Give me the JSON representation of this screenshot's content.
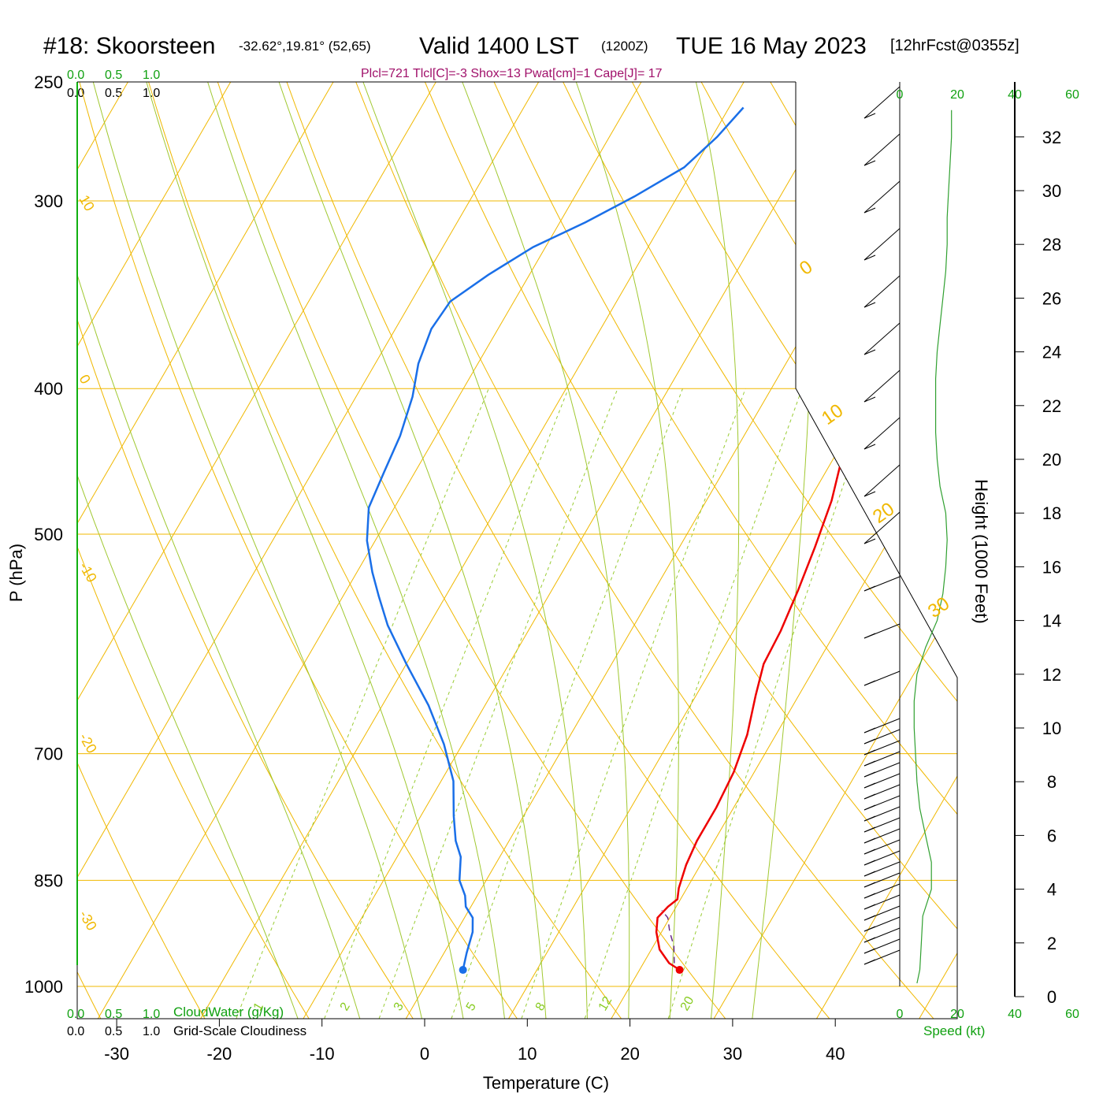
{
  "header": {
    "station": "#18: Skoorsteen",
    "coords": "-32.62°,19.81° (52,65)",
    "valid": "Valid 1400 LST",
    "utc": "(1200Z)",
    "date": "TUE 16 May 2023",
    "forecast": "[12hrFcst@0355z]",
    "params": "Plcl=721 Tlcl[C]=-3 Shox=13 Pwat[cm]=1 Cape[J]= 17"
  },
  "labels": {
    "xlabel": "Temperature (C)",
    "ylabel": "P (hPa)",
    "height_label": "Height (1000 Feet)",
    "cloudwater": "CloudWater (g/Kg)",
    "cloudiness": "Grid-Scale Cloudiness",
    "speed": "Speed (kt)",
    "scale_top_green": [
      "0.0",
      "0.5",
      "1.0"
    ],
    "scale_top_black": [
      "0.0",
      "0.5",
      "1.0"
    ],
    "scale_bottom_green": [
      "0.0",
      "0.5",
      "1.0"
    ],
    "scale_bottom_black": [
      "0.0",
      "0.5",
      "1.0"
    ]
  },
  "colors": {
    "temperature": "#ee0000",
    "dewpoint": "#1a6fe8",
    "isotherm": "#f0b800",
    "dry_adiabat": "#f0b800",
    "moist_adiabat": "#a0c830",
    "mixing_ratio": "#99cc33",
    "parcel": "#6a2a8a",
    "wind_profile": "#30a030",
    "params": "#a0106a"
  },
  "chart_data": {
    "type": "line",
    "title": "#18: Skoorsteen",
    "xlabel": "Temperature (C)",
    "ylabel": "P (hPa)",
    "xlim": [
      -34,
      36
    ],
    "ylim": [
      1000,
      250
    ],
    "y_scale": "log",
    "x_ticks": [
      -30,
      -20,
      -10,
      0,
      10,
      20,
      30,
      40
    ],
    "y_ticks": [
      250,
      300,
      400,
      500,
      700,
      850,
      1000
    ],
    "height_ticks": [
      0,
      2,
      4,
      6,
      8,
      10,
      12,
      14,
      16,
      18,
      20,
      22,
      24,
      26,
      28,
      30,
      32
    ],
    "speed_ticks": [
      0,
      20,
      40,
      60
    ],
    "isotherm_labels": [
      "10",
      "0",
      "-10",
      "-20",
      "-30"
    ],
    "right_isotherm_labels": [
      "0",
      "10",
      "20",
      "30"
    ],
    "mixing_ratio_labels": [
      "1",
      "2",
      "3",
      "5",
      "8",
      "12",
      "20"
    ],
    "series": [
      {
        "name": "temperature",
        "points": [
          [
            23.9,
            975
          ],
          [
            22.5,
            965
          ],
          [
            20.8,
            945
          ],
          [
            19.5,
            920
          ],
          [
            18.8,
            900
          ],
          [
            19.2,
            885
          ],
          [
            19.7,
            875
          ],
          [
            19.2,
            860
          ],
          [
            18.6,
            830
          ],
          [
            18.3,
            800
          ],
          [
            18.3,
            760
          ],
          [
            18.0,
            720
          ],
          [
            17.2,
            680
          ],
          [
            15.8,
            640
          ],
          [
            14.8,
            610
          ],
          [
            14.6,
            580
          ],
          [
            14.0,
            545
          ],
          [
            13.2,
            510
          ],
          [
            12.2,
            475
          ],
          [
            10.8,
            445
          ],
          [
            9.2,
            410
          ],
          [
            7.5,
            380
          ],
          [
            5.8,
            355
          ],
          [
            4.2,
            335
          ],
          [
            2.6,
            315
          ],
          [
            1.2,
            298
          ],
          [
            -0.4,
            282
          ],
          [
            -1.8,
            268
          ],
          [
            -2.6,
            260
          ]
        ]
      },
      {
        "name": "dewpoint",
        "points": [
          [
            2.8,
            975
          ],
          [
            2.2,
            950
          ],
          [
            1.6,
            920
          ],
          [
            0.8,
            900
          ],
          [
            -0.5,
            885
          ],
          [
            -1.2,
            870
          ],
          [
            -2.6,
            850
          ],
          [
            -3.8,
            820
          ],
          [
            -5.2,
            800
          ],
          [
            -6.8,
            770
          ],
          [
            -8.8,
            730
          ],
          [
            -11.8,
            690
          ],
          [
            -15.5,
            650
          ],
          [
            -20.0,
            610
          ],
          [
            -24.0,
            575
          ],
          [
            -26.5,
            550
          ],
          [
            -28.5,
            530
          ],
          [
            -30.8,
            505
          ],
          [
            -32.5,
            480
          ],
          [
            -33.0,
            455
          ],
          [
            -33.5,
            430
          ],
          [
            -34.5,
            405
          ],
          [
            -35.8,
            385
          ],
          [
            -36.5,
            365
          ],
          [
            -36.2,
            350
          ],
          [
            -34.0,
            336
          ],
          [
            -31.2,
            322
          ],
          [
            -27.5,
            310
          ],
          [
            -24.2,
            298
          ],
          [
            -21.0,
            285
          ],
          [
            -19.5,
            272
          ],
          [
            -18.6,
            260
          ]
        ]
      },
      {
        "name": "parcel",
        "points": [
          [
            23.0,
            965
          ],
          [
            22.0,
            940
          ],
          [
            20.8,
            920
          ],
          [
            19.8,
            900
          ],
          [
            18.8,
            890
          ]
        ]
      }
    ],
    "surface_points": [
      {
        "name": "surface_temperature",
        "t": 23.9,
        "p": 975
      },
      {
        "name": "surface_dewpoint",
        "t": 2.8,
        "p": 975
      }
    ],
    "wind_profile_kt": [
      [
        0.5,
        6
      ],
      [
        1,
        7
      ],
      [
        2,
        7.5
      ],
      [
        3,
        8
      ],
      [
        4,
        11
      ],
      [
        5,
        11
      ],
      [
        6,
        9
      ],
      [
        7,
        7
      ],
      [
        8,
        6
      ],
      [
        9,
        5.5
      ],
      [
        10,
        5
      ],
      [
        11,
        5
      ],
      [
        12,
        6
      ],
      [
        13,
        9
      ],
      [
        14,
        13
      ],
      [
        15,
        15
      ],
      [
        16,
        16
      ],
      [
        17,
        16.5
      ],
      [
        18,
        16
      ],
      [
        19,
        14
      ],
      [
        20,
        13
      ],
      [
        21,
        12.5
      ],
      [
        22,
        12.5
      ],
      [
        23,
        12.5
      ],
      [
        24,
        13
      ],
      [
        25,
        14
      ],
      [
        26,
        15
      ],
      [
        27,
        16
      ],
      [
        28,
        16.5
      ],
      [
        29,
        16.5
      ],
      [
        30,
        17
      ],
      [
        31,
        17.5
      ],
      [
        32,
        18
      ],
      [
        33,
        18
      ]
    ]
  }
}
